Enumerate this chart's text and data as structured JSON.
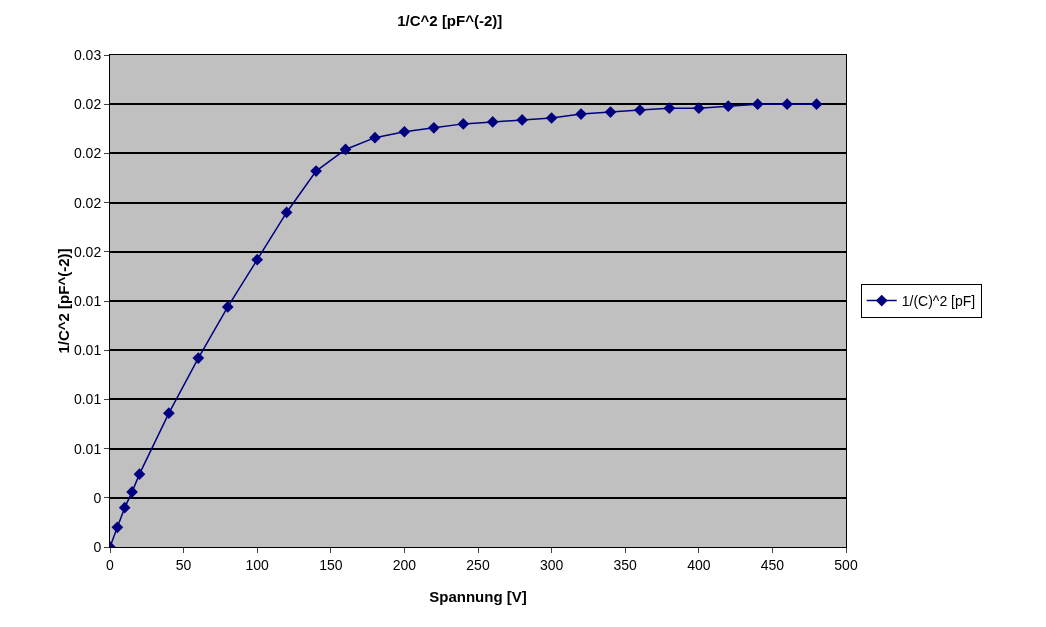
{
  "chart_data": {
    "type": "line",
    "title": "1/C^2 [pF^(-2)]",
    "xlabel": "Spannung [V]",
    "ylabel": "1/C^2 [pF^(-2)]",
    "x": [
      0,
      5,
      10,
      15,
      20,
      40,
      60,
      80,
      100,
      120,
      140,
      160,
      180,
      200,
      220,
      240,
      260,
      280,
      300,
      320,
      340,
      360,
      380,
      400,
      420,
      440,
      460,
      480
    ],
    "series": [
      {
        "name": "1/(C)^2 [pF]",
        "color": "#000080",
        "values": [
          0,
          0.001,
          0.002,
          0.0028,
          0.0037,
          0.0068,
          0.0096,
          0.0122,
          0.0146,
          0.017,
          0.0191,
          0.0202,
          0.0208,
          0.0211,
          0.0213,
          0.0215,
          0.0216,
          0.0217,
          0.0218,
          0.022,
          0.0221,
          0.0222,
          0.0223,
          0.0223,
          0.0224,
          0.0225,
          0.0225,
          0.0225
        ]
      }
    ],
    "xlim": [
      0,
      500
    ],
    "xticks": [
      0,
      50,
      100,
      150,
      200,
      250,
      300,
      350,
      400,
      450,
      500
    ],
    "ylim": [
      0,
      0.025
    ],
    "yticks": [
      {
        "value": 0,
        "label": "0"
      },
      {
        "value": 0.0025,
        "label": "0"
      },
      {
        "value": 0.005,
        "label": "0.01"
      },
      {
        "value": 0.0075,
        "label": "0.01"
      },
      {
        "value": 0.01,
        "label": "0.01"
      },
      {
        "value": 0.0125,
        "label": "0.01"
      },
      {
        "value": 0.015,
        "label": "0.02"
      },
      {
        "value": 0.0175,
        "label": "0.02"
      },
      {
        "value": 0.02,
        "label": "0.02"
      },
      {
        "value": 0.0225,
        "label": "0.02"
      },
      {
        "value": 0.025,
        "label": "0.03"
      }
    ],
    "grid": "y",
    "legend": "right",
    "marker": "diamond",
    "line_style": "solid"
  }
}
